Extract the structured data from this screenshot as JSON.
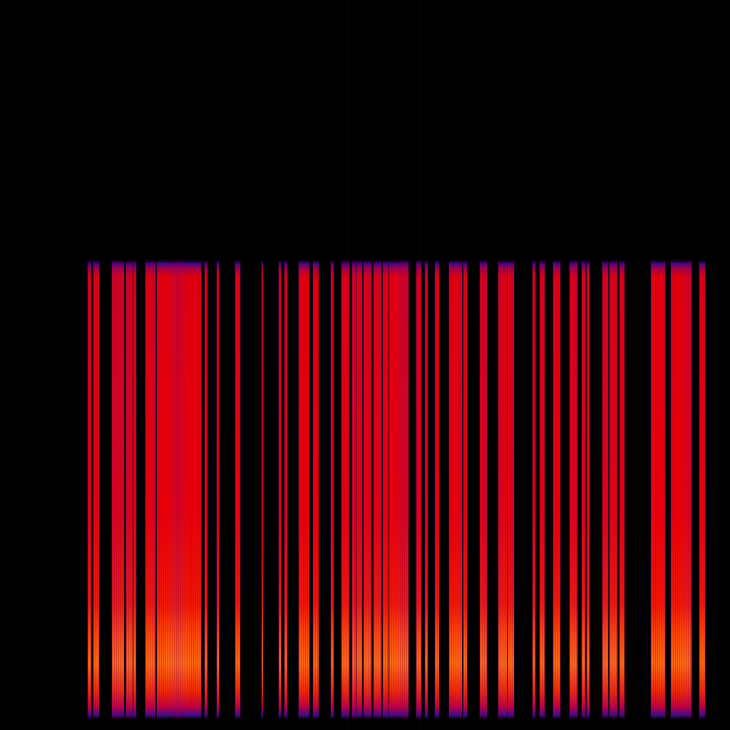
{
  "image": {
    "kind": "spectrogram",
    "colormap": "inferno-like",
    "colors": {
      "background": "#000000",
      "edge": "#3a0a8a",
      "body": "#e00010",
      "highlight": "#ff6a10"
    }
  }
}
